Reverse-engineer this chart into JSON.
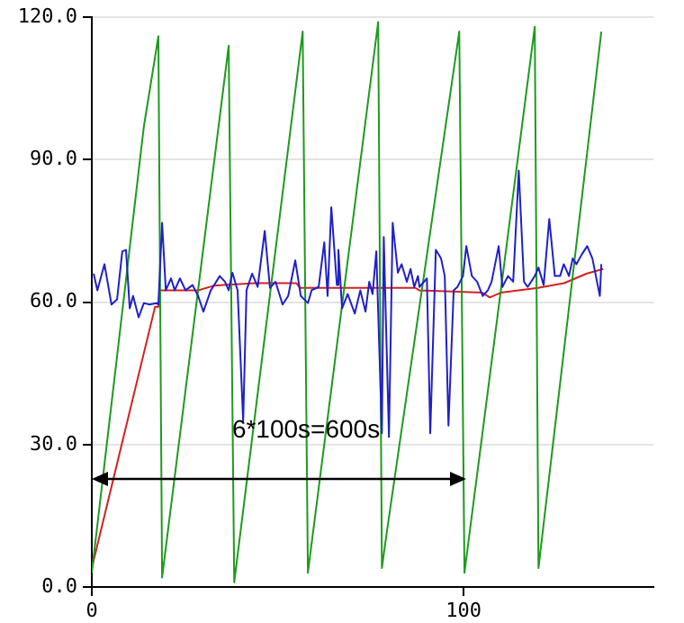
{
  "chart_data": {
    "type": "line",
    "xlim": [
      0,
      151
    ],
    "xticks": [
      0,
      100
    ],
    "ylim": [
      0,
      120
    ],
    "yticks": [
      {
        "value": 0,
        "label": "0.0"
      },
      {
        "value": 30,
        "label": "30.0"
      },
      {
        "value": 60,
        "label": "60.0"
      },
      {
        "value": 90,
        "label": "90.0"
      },
      {
        "value": 120,
        "label": "120.0"
      }
    ],
    "grid": "y",
    "legend": false,
    "marker": "none",
    "line_style": "solid",
    "annotations": [
      {
        "text": "6*100s=600s",
        "x": 57.6,
        "y": 33
      }
    ],
    "series": [
      {
        "color": "#2020c8",
        "x": [
          0.5,
          1.5,
          3.4,
          5.3,
          6.8,
          8.2,
          9.2,
          10.2,
          11.1,
          12.6,
          14.0,
          15.5,
          17.4,
          17.9,
          18.9,
          19.9,
          21.3,
          22.3,
          23.7,
          25.2,
          27.1,
          28.6,
          30.0,
          32.0,
          34.4,
          35.8,
          36.8,
          37.8,
          39.2,
          40.7,
          41.6,
          43.1,
          44.6,
          46.5,
          47.9,
          49.4,
          51.3,
          52.8,
          54.7,
          56.2,
          58.1,
          59.1,
          61.0,
          62.5,
          63.4,
          64.4,
          65.9,
          66.3,
          67.3,
          68.8,
          70.7,
          72.2,
          73.6,
          74.6,
          75.5,
          76.5,
          78.0,
          78.5,
          79.9,
          80.9,
          82.3,
          83.3,
          84.7,
          85.7,
          86.7,
          87.7,
          88.1,
          90.1,
          91.0,
          92.5,
          93.9,
          94.9,
          95.9,
          97.3,
          98.3,
          99.8,
          100.7,
          102.2,
          103.6,
          105.1,
          106.5,
          107.5,
          109.4,
          110.4,
          111.9,
          113.3,
          114.8,
          116.2,
          117.2,
          119.1,
          120.1,
          121.5,
          123.0,
          124.5,
          125.9,
          126.9,
          128.3,
          129.3,
          130.3,
          131.7,
          133.2,
          134.6,
          136.6,
          137.0
        ],
        "values": [
          66,
          62.5,
          68,
          59.5,
          60.6,
          70.7,
          71,
          58.7,
          61.3,
          56.8,
          59.8,
          59.5,
          59.8,
          59.5,
          76.7,
          62.5,
          65,
          62.5,
          65,
          62.5,
          63.6,
          61.3,
          58,
          62.5,
          65.5,
          64.3,
          62.5,
          66.2,
          62.5,
          35,
          62.5,
          66,
          63.2,
          75,
          63,
          64.3,
          59.5,
          61.3,
          68.8,
          61.3,
          59.8,
          62.5,
          63.2,
          72.6,
          61.3,
          80,
          63.6,
          71,
          58.7,
          61.7,
          57.6,
          62.5,
          58,
          64.3,
          61.7,
          70.7,
          32.4,
          73.7,
          31.6,
          76.7,
          66.2,
          68,
          64.3,
          67,
          63.2,
          65.5,
          63.2,
          65,
          32.4,
          71,
          69.2,
          65.5,
          34,
          62.5,
          63.2,
          65.5,
          71.8,
          65.5,
          64.3,
          61.3,
          62.5,
          64.3,
          71.8,
          63.2,
          65.5,
          64.3,
          87.7,
          64.3,
          63.2,
          65.5,
          67.3,
          63.6,
          77.5,
          65.5,
          65.5,
          68,
          65.5,
          69.2,
          68,
          70,
          71.8,
          69.2,
          61.3,
          68
        ]
      },
      {
        "color": "#1e9a1e",
        "x": [
          0,
          14,
          17.9,
          18.9,
          36.8,
          38.3,
          56.7,
          58.1,
          77,
          78,
          79.4,
          98.8,
          100.2,
          119.1,
          120.1,
          137
        ],
        "values": [
          3,
          97,
          116,
          2,
          114,
          1,
          117,
          3,
          119,
          4,
          12,
          117,
          3,
          118,
          4,
          117
        ]
      },
      {
        "color": "#d42020",
        "x": [
          0,
          17,
          17.9,
          18.4,
          28.6,
          33,
          44,
          55,
          56,
          87,
          88,
          105,
          107,
          110,
          120,
          127,
          130,
          133,
          137.5
        ],
        "values": [
          4,
          59,
          59,
          62.5,
          62.5,
          63.5,
          64,
          64,
          63,
          63,
          62.5,
          62,
          61,
          62,
          63,
          64,
          65,
          66,
          67
        ]
      }
    ]
  }
}
